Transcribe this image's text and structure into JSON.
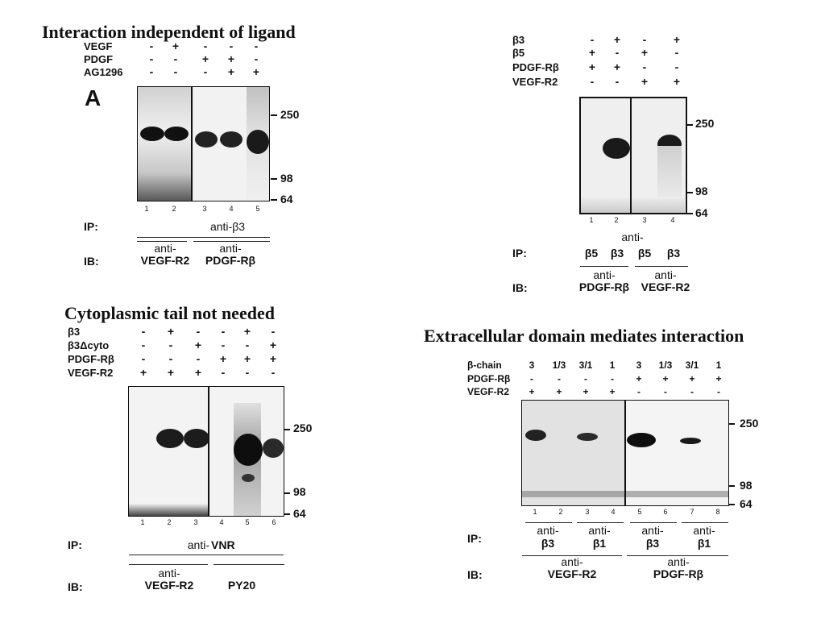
{
  "panels": {
    "a": {
      "title": "Interaction independent of ligand",
      "panel_letter": "A",
      "row_labels": [
        "VEGF",
        "PDGF",
        "AG1296"
      ],
      "rows": [
        [
          "-",
          "+",
          "-",
          "-",
          "-"
        ],
        [
          "-",
          "-",
          "+",
          "+",
          "-"
        ],
        [
          "-",
          "-",
          "-",
          "+",
          "+"
        ]
      ],
      "lanes": [
        "1",
        "2",
        "3",
        "4",
        "5"
      ],
      "mw": [
        "250",
        "98",
        "64"
      ],
      "ip_label": "IP:",
      "ip_value": "anti-β3",
      "ib_label": "IB:",
      "ib_groups": [
        {
          "top": "anti-",
          "bottom": "VEGF-R2"
        },
        {
          "top": "anti-",
          "bottom": "PDGF-Rβ"
        }
      ]
    },
    "b": {
      "row_labels": [
        "β3",
        "β5",
        "PDGF-Rβ",
        "VEGF-R2"
      ],
      "rows": [
        [
          "-",
          "+",
          "-",
          "+"
        ],
        [
          "+",
          "-",
          "+",
          "-"
        ],
        [
          "+",
          "+",
          "-",
          "-"
        ],
        [
          "-",
          "-",
          "+",
          "+"
        ]
      ],
      "lanes": [
        "1",
        "2",
        "3",
        "4"
      ],
      "mw": [
        "250",
        "98",
        "64"
      ],
      "ip_prefix": "anti-",
      "ip_label": "IP:",
      "ip_values": [
        "β5",
        "β3",
        "β5",
        "β3"
      ],
      "ib_label": "IB:",
      "ib_groups": [
        {
          "top": "anti-",
          "bottom": "PDGF-Rβ"
        },
        {
          "top": "anti-",
          "bottom": "VEGF-R2"
        }
      ]
    },
    "c": {
      "title": "Cytoplasmic tail not needed",
      "row_labels": [
        "β3",
        "β3Δcyto",
        "PDGF-Rβ",
        "VEGF-R2"
      ],
      "rows": [
        [
          "-",
          "+",
          "-",
          "-",
          "+",
          "-"
        ],
        [
          "-",
          "-",
          "+",
          "-",
          "-",
          "+"
        ],
        [
          "-",
          "-",
          "-",
          "+",
          "+",
          "+"
        ],
        [
          "+",
          "+",
          "+",
          "-",
          "-",
          "-"
        ]
      ],
      "lanes": [
        "1",
        "2",
        "3",
        "4",
        "5",
        "6"
      ],
      "mw": [
        "250",
        "98",
        "64"
      ],
      "ip_label": "IP:",
      "ip_prefix": "anti-",
      "ip_value": "VNR",
      "ib_label": "IB:",
      "ib_groups": [
        {
          "top": "anti-",
          "bottom": "VEGF-R2"
        },
        {
          "top": "",
          "bottom": "PY20"
        }
      ]
    },
    "d": {
      "title": "Extracellular domain mediates interaction",
      "row_labels": [
        "β-chain",
        "PDGF-Rβ",
        "VEGF-R2"
      ],
      "rows": [
        [
          "3",
          "1/3",
          "3/1",
          "1",
          "3",
          "1/3",
          "3/1",
          "1"
        ],
        [
          "-",
          "-",
          "-",
          "-",
          "+",
          "+",
          "+",
          "+"
        ],
        [
          "+",
          "+",
          "+",
          "+",
          "-",
          "-",
          "-",
          "-"
        ]
      ],
      "lanes": [
        "1",
        "2",
        "3",
        "4",
        "5",
        "6",
        "7",
        "8"
      ],
      "mw": [
        "250",
        "98",
        "64"
      ],
      "ip_label": "IP:",
      "ip_groups": [
        {
          "top": "anti-",
          "bottom": "β3"
        },
        {
          "top": "anti-",
          "bottom": "β1"
        },
        {
          "top": "anti-",
          "bottom": "β3"
        },
        {
          "top": "anti-",
          "bottom": "β1"
        }
      ],
      "ib_label": "IB:",
      "ib_groups": [
        {
          "top": "anti-",
          "bottom": "VEGF-R2"
        },
        {
          "top": "anti-",
          "bottom": "PDGF-Rβ"
        }
      ]
    }
  }
}
